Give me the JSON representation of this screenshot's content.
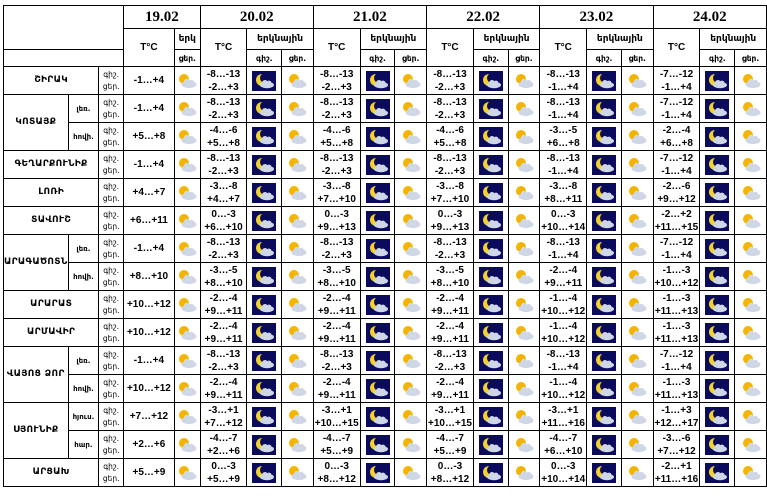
{
  "header": {
    "dates": [
      "19.02",
      "20.02",
      "21.02",
      "22.02",
      "23.02",
      "24.02"
    ],
    "temp_label": "T°C",
    "weather_label": "երկնային",
    "weather_label_short": "երկ",
    "night_abbr": "գիշ.",
    "day_abbr": "ցեր."
  },
  "regions": [
    {
      "name": "ՇԻՐԱԿ",
      "rows": [
        {
          "sub": "",
          "tod": [
            "գիշ.",
            "ցեր."
          ],
          "d19": "-1…+4",
          "days": [
            [
              "-8…-13",
              "-2…+3"
            ],
            [
              "-8…-13",
              "-2…+3"
            ],
            [
              "-8…-13",
              "-2…+3"
            ],
            [
              "-8…-13",
              "-1…+4"
            ],
            [
              "-7…-12",
              "-1…+4"
            ]
          ]
        }
      ]
    },
    {
      "name": "ԿՈՏԱՅՔ",
      "rows": [
        {
          "sub": "լեռ.",
          "tod": [
            "գիշ.",
            "ցեր."
          ],
          "d19": "-1…+4",
          "days": [
            [
              "-8…-13",
              "-2…+3"
            ],
            [
              "-8…-13",
              "-2…+3"
            ],
            [
              "-8…-13",
              "-2…+3"
            ],
            [
              "-8…-13",
              "-1…+4"
            ],
            [
              "-7…-12",
              "-1…+4"
            ]
          ]
        },
        {
          "sub": "հովի.",
          "tod": [
            "գիշ.",
            "ցեր."
          ],
          "d19": "+5…+8",
          "days": [
            [
              "-4…-6",
              "+5…+8"
            ],
            [
              "-4…-6",
              "+5…+8"
            ],
            [
              "-4…-6",
              "+5…+8"
            ],
            [
              "-3…-5",
              "+6…+8"
            ],
            [
              "-2…-4",
              "+6…+8"
            ]
          ]
        }
      ]
    },
    {
      "name": "ԳԵՂԱՐՔՈՒՆԻՔ",
      "rows": [
        {
          "sub": "",
          "tod": [
            "գիշ.",
            "ցեր."
          ],
          "d19": "-1…+4",
          "days": [
            [
              "-8…-13",
              "-2…+3"
            ],
            [
              "-8…-13",
              "-2…+3"
            ],
            [
              "-8…-13",
              "-2…+3"
            ],
            [
              "-8…-13",
              "-1…+4"
            ],
            [
              "-7…-12",
              "-1…+4"
            ]
          ]
        }
      ]
    },
    {
      "name": "ԼՈՌԻ",
      "rows": [
        {
          "sub": "",
          "tod": [
            "գիշ.",
            "ցեր."
          ],
          "d19": "+4…+7",
          "days": [
            [
              "-3…-8",
              "+4…+7"
            ],
            [
              "-3…-8",
              "+7…+10"
            ],
            [
              "-3…-8",
              "+7…+10"
            ],
            [
              "-3…-8",
              "+8…+11"
            ],
            [
              "-2…-6",
              "+9…+12"
            ]
          ]
        }
      ]
    },
    {
      "name": "ՏԱՎՈՒՇ",
      "rows": [
        {
          "sub": "",
          "tod": [
            "գիշ.",
            "ցեր."
          ],
          "d19": "+6…+11",
          "days": [
            [
              "0…-3",
              "+6…+10"
            ],
            [
              "0…-3",
              "+9…+13"
            ],
            [
              "0…-3",
              "+9…+13"
            ],
            [
              "0…-3",
              "+10…+14"
            ],
            [
              "-2…+2",
              "+11…+15"
            ]
          ]
        }
      ]
    },
    {
      "name": "ԱՐԱԳԱԾՈՏՆ",
      "rows": [
        {
          "sub": "լեռ.",
          "tod": [
            "գիշ.",
            "ցեր."
          ],
          "d19": "-1…+4",
          "days": [
            [
              "-8…-13",
              "-2…+3"
            ],
            [
              "-8…-13",
              "-2…+3"
            ],
            [
              "-8…-13",
              "-2…+3"
            ],
            [
              "-8…-13",
              "-1…+4"
            ],
            [
              "-7…-12",
              "-1…+4"
            ]
          ]
        },
        {
          "sub": "հովի.",
          "tod": [
            "գիշ.",
            "ցեր."
          ],
          "d19": "+8…+10",
          "days": [
            [
              "-3…-5",
              "+8…+10"
            ],
            [
              "-3…-5",
              "+8…+10"
            ],
            [
              "-3…-5",
              "+8…+10"
            ],
            [
              "-2…-4",
              "+9…+11"
            ],
            [
              "-1…-3",
              "+10…+12"
            ]
          ]
        }
      ]
    },
    {
      "name": "ԱՐԱՐԱՏ",
      "rows": [
        {
          "sub": "",
          "tod": [
            "գիշ.",
            "ցեր."
          ],
          "d19": "+10…+12",
          "days": [
            [
              "-2…-4",
              "+9…+11"
            ],
            [
              "-2…-4",
              "+9…+11"
            ],
            [
              "-2…-4",
              "+9…+11"
            ],
            [
              "-1…-4",
              "+10…+12"
            ],
            [
              "-1…-3",
              "+11…+13"
            ]
          ]
        }
      ]
    },
    {
      "name": "ԱՐՄԱՎԻՐ",
      "rows": [
        {
          "sub": "",
          "tod": [
            "գիշ.",
            "ցեր."
          ],
          "d19": "+10…+12",
          "days": [
            [
              "-2…-4",
              "+9…+11"
            ],
            [
              "-2…-4",
              "+9…+11"
            ],
            [
              "-2…-4",
              "+9…+11"
            ],
            [
              "-1…-4",
              "+10…+12"
            ],
            [
              "-1…-3",
              "+11…+13"
            ]
          ]
        }
      ]
    },
    {
      "name": "ՎԱՅՈՑ ՁՈՐ",
      "rows": [
        {
          "sub": "լեռ.",
          "tod": [
            "գիշ.",
            "ցեր."
          ],
          "d19": "-1…+4",
          "days": [
            [
              "-8…-13",
              "-2…+3"
            ],
            [
              "-8…-13",
              "-2…+3"
            ],
            [
              "-8…-13",
              "-2…+3"
            ],
            [
              "-8…-13",
              "-1…+4"
            ],
            [
              "-7…-12",
              "-1…+4"
            ]
          ]
        },
        {
          "sub": "հովի.",
          "tod": [
            "գիշ.",
            "ցեր."
          ],
          "d19": "+10…+12",
          "days": [
            [
              "-2…-4",
              "+9…+11"
            ],
            [
              "-2…-4",
              "+9…+11"
            ],
            [
              "-2…-4",
              "+9…+11"
            ],
            [
              "-1…-4",
              "+10…+12"
            ],
            [
              "-1…-3",
              "+11…+13"
            ]
          ]
        }
      ]
    },
    {
      "name": "ՍՅՈՒՆԻՔ",
      "rows": [
        {
          "sub": "հյուս.",
          "tod": [
            "գիշ.",
            "ցեր."
          ],
          "d19": "+7…+12",
          "days": [
            [
              "-3…+1",
              "+7…+12"
            ],
            [
              "-3…+1",
              "+10…+15"
            ],
            [
              "-3…+1",
              "+10…+15"
            ],
            [
              "-3…+1",
              "+11…+16"
            ],
            [
              "-1…+3",
              "+12…+17"
            ]
          ]
        },
        {
          "sub": "հար.",
          "tod": [
            "գիշ.",
            "ցեր."
          ],
          "d19": "+2…+6",
          "days": [
            [
              "-4…-7",
              "+2…+6"
            ],
            [
              "-4…-7",
              "+5…+9"
            ],
            [
              "-4…-7",
              "+5…+9"
            ],
            [
              "-4…-7",
              "+6…+10"
            ],
            [
              "-3…-6",
              "+7…+12"
            ]
          ]
        }
      ]
    },
    {
      "name": "ԱՐՑԱԽ",
      "rows": [
        {
          "sub": "",
          "tod": [
            "գիշ.",
            "ցեր."
          ],
          "d19": "+5…+9",
          "days": [
            [
              "0…-3",
              "+5…+9"
            ],
            [
              "0…-3",
              "+8…+12"
            ],
            [
              "0…-3",
              "+8…+12"
            ],
            [
              "0…-3",
              "+10…+14"
            ],
            [
              "-2…+1",
              "+11…+16"
            ]
          ]
        }
      ]
    }
  ],
  "icons": {
    "night": "moon-cloud-night-icon",
    "day": "sun-cloud-day-icon"
  },
  "colors": {
    "night_bg": "#0b0b5e",
    "moon": "#f2d230",
    "sun": "#f5b400",
    "cloud": "#cfd6e6",
    "border": "#000000"
  }
}
